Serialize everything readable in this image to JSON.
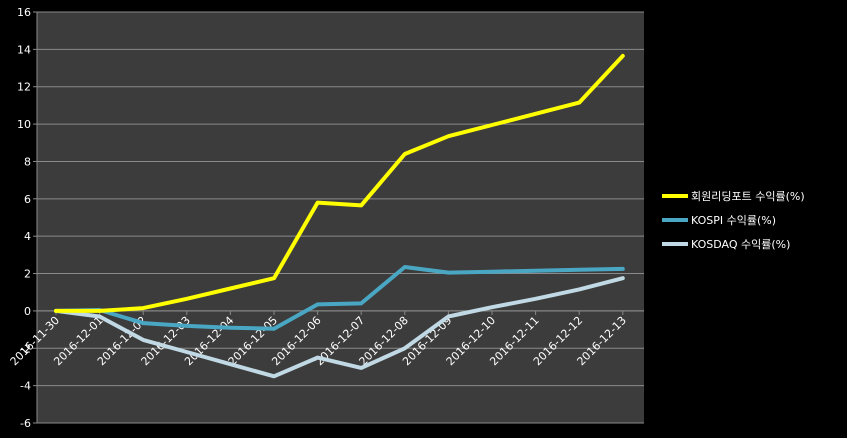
{
  "chart_data": {
    "type": "line",
    "title": "",
    "xlabel": "",
    "ylabel": "",
    "ylim": [
      -6,
      16
    ],
    "y_ticks": [
      -6,
      -4,
      -2,
      0,
      2,
      4,
      6,
      8,
      10,
      12,
      14,
      16
    ],
    "categories": [
      "2016-11-30",
      "2016-12-01",
      "2016-12-02",
      "2016-12-03",
      "2016-12-04",
      "2016-12-05",
      "2016-12-06",
      "2016-12-07",
      "2016-12-08",
      "2016-12-09",
      "2016-12-10",
      "2016-12-11",
      "2016-12-12",
      "2016-12-13"
    ],
    "grid": true,
    "legend_position": "right",
    "background": "#3c3c3c",
    "series": [
      {
        "name": "회원리딩포트 수익률(%)",
        "color": "#ffff00",
        "values": [
          0.0,
          0.0,
          0.15,
          0.65,
          1.2,
          1.75,
          5.8,
          5.65,
          8.4,
          9.35,
          9.95,
          10.55,
          11.15,
          13.65
        ]
      },
      {
        "name": "KOSPI 수익률(%)",
        "color": "#4aa7c4",
        "values": [
          0.0,
          0.05,
          -0.65,
          -0.8,
          -0.9,
          -0.95,
          0.35,
          0.4,
          2.35,
          2.05,
          2.1,
          2.15,
          2.2,
          2.25
        ]
      },
      {
        "name": "KOSDAQ 수익률(%)",
        "color": "#c0d9e4",
        "values": [
          0.0,
          -0.3,
          -1.55,
          -2.2,
          -2.85,
          -3.5,
          -2.5,
          -3.05,
          -2.0,
          -0.3,
          0.2,
          0.65,
          1.15,
          1.75
        ]
      }
    ]
  }
}
